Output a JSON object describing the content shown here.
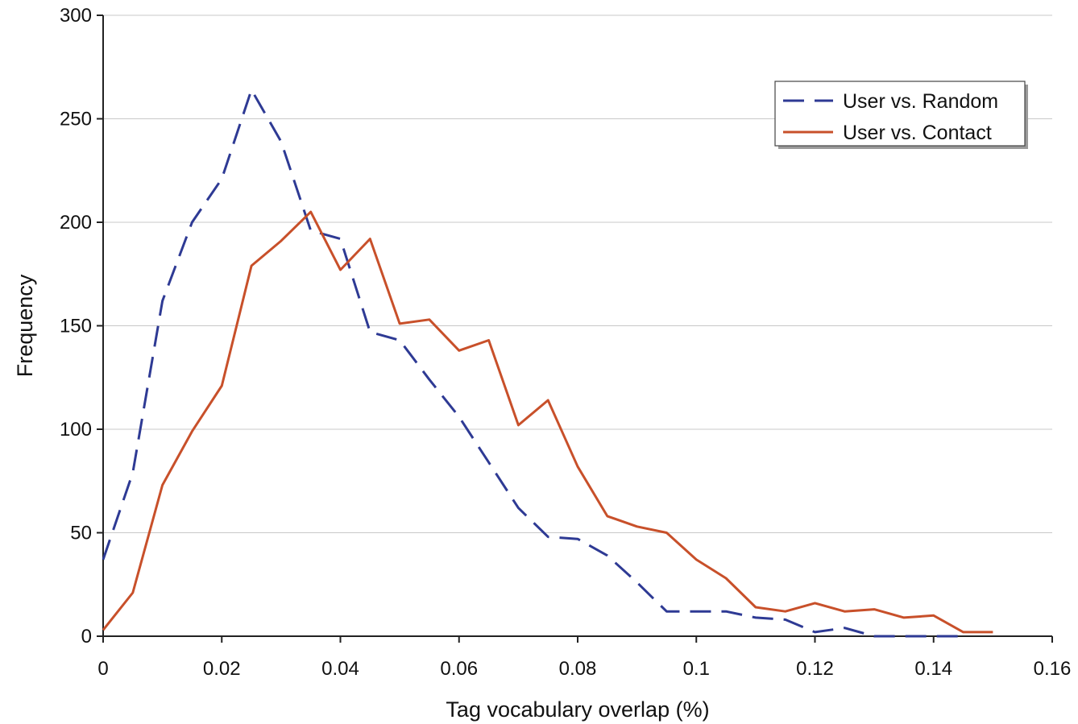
{
  "chart_data": {
    "type": "line",
    "title": "",
    "xlabel": "Tag vocabulary overlap (%)",
    "ylabel": "Frequency",
    "xlim": [
      0,
      0.16
    ],
    "ylim": [
      0,
      300
    ],
    "x_ticks": [
      0,
      0.02,
      0.04,
      0.06,
      0.08,
      0.1,
      0.12,
      0.14,
      0.16
    ],
    "x_tick_labels": [
      "0",
      "0.02",
      "0.04",
      "0.06",
      "0.08",
      "0.1",
      "0.12",
      "0.14",
      "0.16"
    ],
    "y_ticks": [
      0,
      50,
      100,
      150,
      200,
      250,
      300
    ],
    "y_tick_labels": [
      "0",
      "50",
      "100",
      "150",
      "200",
      "250",
      "300"
    ],
    "grid": "horizontal",
    "legend_position": "top-right",
    "series": [
      {
        "name": "User vs. Random",
        "style": "dashed",
        "color": "#2E3A94",
        "points": [
          [
            0,
            37
          ],
          [
            0.005,
            79
          ],
          [
            0.01,
            162
          ],
          [
            0.015,
            200
          ],
          [
            0.02,
            221
          ],
          [
            0.025,
            264
          ],
          [
            0.03,
            239
          ],
          [
            0.035,
            196
          ],
          [
            0.04,
            192
          ],
          [
            0.045,
            147
          ],
          [
            0.05,
            143
          ],
          [
            0.055,
            124
          ],
          [
            0.06,
            106
          ],
          [
            0.065,
            84
          ],
          [
            0.07,
            62
          ],
          [
            0.075,
            48
          ],
          [
            0.08,
            47
          ],
          [
            0.085,
            39
          ],
          [
            0.09,
            26
          ],
          [
            0.095,
            12
          ],
          [
            0.1,
            12
          ],
          [
            0.105,
            12
          ],
          [
            0.11,
            9
          ],
          [
            0.115,
            8
          ],
          [
            0.12,
            2
          ],
          [
            0.125,
            4
          ],
          [
            0.13,
            0
          ],
          [
            0.135,
            0
          ],
          [
            0.14,
            0
          ],
          [
            0.145,
            0
          ]
        ]
      },
      {
        "name": "User vs. Contact",
        "style": "solid",
        "color": "#C8502A",
        "points": [
          [
            0,
            3
          ],
          [
            0.005,
            21
          ],
          [
            0.01,
            73
          ],
          [
            0.015,
            99
          ],
          [
            0.02,
            121
          ],
          [
            0.025,
            179
          ],
          [
            0.03,
            191
          ],
          [
            0.035,
            205
          ],
          [
            0.04,
            177
          ],
          [
            0.045,
            192
          ],
          [
            0.05,
            151
          ],
          [
            0.055,
            153
          ],
          [
            0.06,
            138
          ],
          [
            0.065,
            143
          ],
          [
            0.07,
            102
          ],
          [
            0.075,
            114
          ],
          [
            0.08,
            82
          ],
          [
            0.085,
            58
          ],
          [
            0.09,
            53
          ],
          [
            0.095,
            50
          ],
          [
            0.1,
            37
          ],
          [
            0.105,
            28
          ],
          [
            0.11,
            14
          ],
          [
            0.115,
            12
          ],
          [
            0.12,
            16
          ],
          [
            0.125,
            12
          ],
          [
            0.13,
            13
          ],
          [
            0.135,
            9
          ],
          [
            0.14,
            10
          ],
          [
            0.145,
            2
          ],
          [
            0.15,
            2
          ]
        ]
      }
    ]
  }
}
